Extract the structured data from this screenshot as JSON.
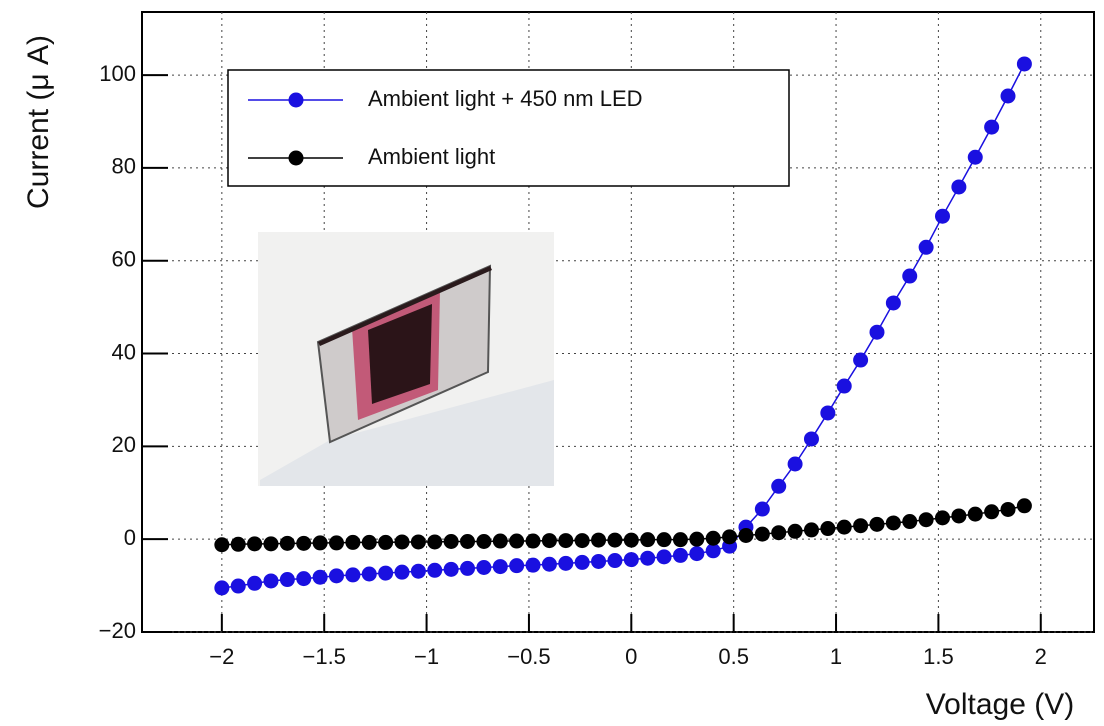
{
  "chart_data": {
    "type": "line",
    "x_label": "Voltage (V)",
    "y_label": "Current (μ A)",
    "x": [
      -2,
      -1.92,
      -1.84,
      -1.76,
      -1.68,
      -1.6,
      -1.52,
      -1.44,
      -1.36,
      -1.28,
      -1.2,
      -1.12,
      -1.04,
      -0.96,
      -0.88,
      -0.8,
      -0.72,
      -0.64,
      -0.56,
      -0.48,
      -0.4,
      -0.32,
      -0.24,
      -0.16,
      -0.08,
      0,
      0.08,
      0.16,
      0.24,
      0.32,
      0.4,
      0.48,
      0.56,
      0.64,
      0.72,
      0.8,
      0.88,
      0.96,
      1.04,
      1.12,
      1.2,
      1.28,
      1.36,
      1.44,
      1.52,
      1.6,
      1.68,
      1.76,
      1.84,
      1.92
    ],
    "series": [
      {
        "name": "Ambient light + 450 nm LED",
        "color": "#1a10e0",
        "values": [
          -10.5,
          -10.1,
          -9.5,
          -9.0,
          -8.7,
          -8.5,
          -8.2,
          -7.9,
          -7.7,
          -7.5,
          -7.3,
          -7.1,
          -6.9,
          -6.7,
          -6.5,
          -6.3,
          -6.1,
          -5.9,
          -5.7,
          -5.6,
          -5.4,
          -5.2,
          -5.0,
          -4.8,
          -4.6,
          -4.4,
          -4.1,
          -3.8,
          -3.5,
          -3.1,
          -2.5,
          -1.5,
          2.6,
          6.5,
          11.4,
          16.2,
          21.6,
          27.2,
          33,
          38.6,
          44.6,
          50.9,
          56.7,
          62.9,
          69.6,
          75.9,
          82.3,
          88.8,
          95.5,
          102.4
        ]
      },
      {
        "name": "Ambient light",
        "color": "#000000",
        "values": [
          -1.2,
          -1.1,
          -1.0,
          -1.0,
          -0.9,
          -0.9,
          -0.8,
          -0.8,
          -0.7,
          -0.7,
          -0.7,
          -0.6,
          -0.6,
          -0.6,
          -0.5,
          -0.5,
          -0.5,
          -0.4,
          -0.4,
          -0.4,
          -0.3,
          -0.3,
          -0.3,
          -0.2,
          -0.2,
          -0.2,
          -0.1,
          -0.1,
          -0.1,
          0,
          0.2,
          0.5,
          0.8,
          1.1,
          1.4,
          1.7,
          2.0,
          2.3,
          2.6,
          2.9,
          3.2,
          3.5,
          3.8,
          4.2,
          4.6,
          5.0,
          5.4,
          5.9,
          6.4,
          7.2
        ]
      }
    ],
    "xlim": [
      -2.39,
      2.26
    ],
    "ylim": [
      -20,
      113.6
    ],
    "xticks": [
      {
        "value": -2,
        "label": "−2"
      },
      {
        "value": -1.5,
        "label": "−1.5"
      },
      {
        "value": -1,
        "label": "−1"
      },
      {
        "value": -0.5,
        "label": "−0.5"
      },
      0,
      0.5,
      1,
      1.5,
      2
    ],
    "yticks": [
      {
        "value": -20,
        "label": "−20"
      },
      0,
      20,
      40,
      60,
      80,
      100
    ],
    "grid": true,
    "legend": "upper left"
  }
}
